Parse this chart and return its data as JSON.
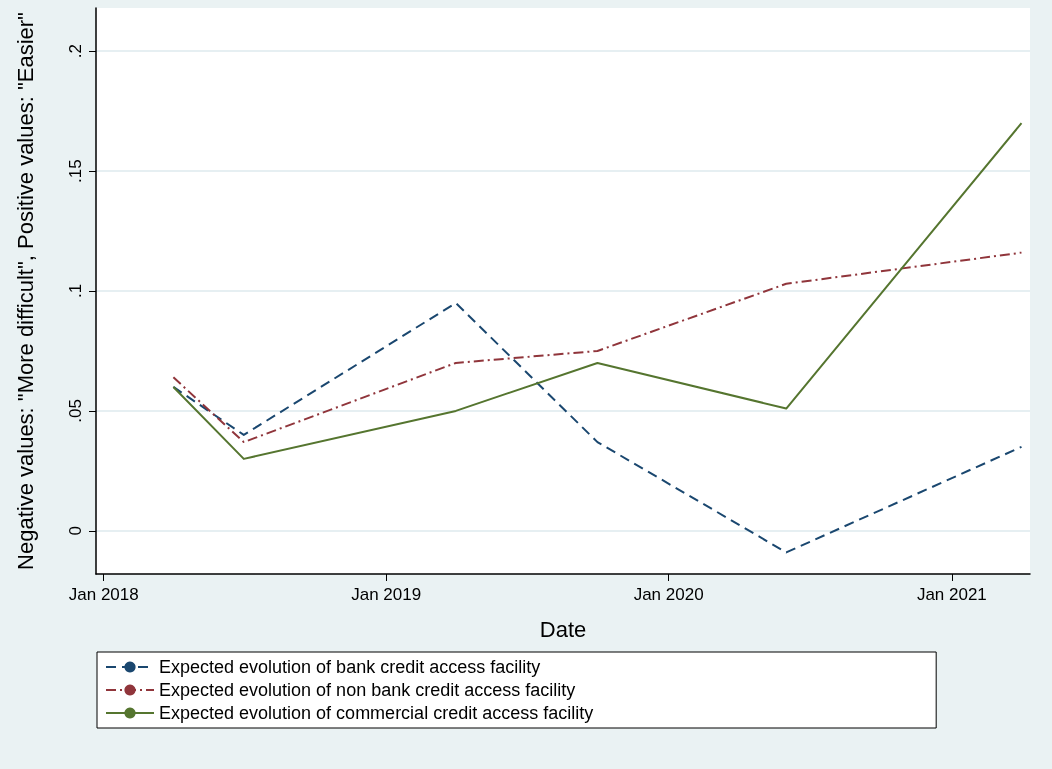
{
  "chart_data": {
    "type": "line",
    "xlabel": "Date",
    "ylabel": "Negative values: \"More difficult\", Positive values: \"Easier\"",
    "x": [
      "2018-04-01",
      "2018-07-01",
      "2019-04-01",
      "2019-10-01",
      "2020-06-01",
      "2021-04-01"
    ],
    "series": [
      {
        "name": "Expected evolution of bank credit access facility",
        "color": "#1a476f",
        "line_style": "dashed",
        "values": [
          0.06,
          0.04,
          0.095,
          0.037,
          -0.009,
          0.035
        ]
      },
      {
        "name": "Expected evolution of non bank credit access facility",
        "color": "#90353b",
        "line_style": "dashdot",
        "values": [
          0.064,
          0.037,
          0.07,
          0.075,
          0.103,
          0.116
        ]
      },
      {
        "name": "Expected evolution of commercial credit access facility",
        "color": "#55752f",
        "line_style": "solid",
        "values": [
          0.06,
          0.03,
          0.05,
          0.07,
          0.051,
          0.17
        ]
      }
    ],
    "xlim": [
      "2017-12-22",
      "2021-04-12"
    ],
    "xticks": [
      {
        "value": "2018-01-01",
        "label": "Jan 2018"
      },
      {
        "value": "2019-01-01",
        "label": "Jan 2019"
      },
      {
        "value": "2020-01-01",
        "label": "Jan 2020"
      },
      {
        "value": "2021-01-01",
        "label": "Jan 2021"
      }
    ],
    "ylim": [
      -0.018,
      0.218
    ],
    "yticks": [
      0,
      {
        "value": 0.05,
        "label": ".05"
      },
      {
        "value": 0.1,
        "label": ".1"
      },
      {
        "value": 0.15,
        "label": ".15"
      },
      {
        "value": 0.2,
        "label": ".2"
      }
    ],
    "grid": "y",
    "legend": "bottom",
    "marker": "none"
  }
}
